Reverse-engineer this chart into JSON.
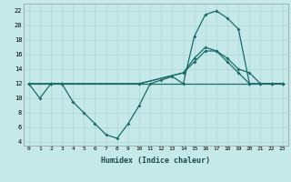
{
  "xlabel": "Humidex (Indice chaleur)",
  "bg_color": "#c5e8e8",
  "line_color": "#1a6b6b",
  "grid_color": "#aed4d4",
  "xlim": [
    -0.5,
    23.5
  ],
  "ylim": [
    3.5,
    23
  ],
  "xticks": [
    0,
    1,
    2,
    3,
    4,
    5,
    6,
    7,
    8,
    9,
    10,
    11,
    12,
    13,
    14,
    15,
    16,
    17,
    18,
    19,
    20,
    21,
    22,
    23
  ],
  "yticks": [
    4,
    6,
    8,
    10,
    12,
    14,
    16,
    18,
    20,
    22
  ],
  "line1_x": [
    0,
    1,
    2,
    3,
    4,
    5,
    6,
    7,
    8,
    9,
    10,
    11,
    12,
    13,
    14,
    15,
    16,
    17,
    18,
    19,
    20,
    21,
    22,
    23
  ],
  "line1_y": [
    12,
    10,
    12,
    12,
    9.5,
    8,
    6.5,
    5,
    4.5,
    6.5,
    9,
    12,
    12.5,
    13,
    12,
    18.5,
    21.5,
    22,
    21,
    19.5,
    12,
    12,
    12,
    12
  ],
  "line2_x": [
    0,
    2,
    3,
    10,
    14,
    15,
    16,
    17,
    18,
    19,
    20,
    21,
    22,
    23
  ],
  "line2_y": [
    12,
    12,
    12,
    12,
    13.5,
    15,
    16.5,
    16.5,
    15.5,
    14,
    13.5,
    12,
    12,
    12
  ],
  "line3_x": [
    0,
    23
  ],
  "line3_y": [
    12,
    12
  ],
  "line4_x": [
    0,
    2,
    3,
    10,
    14,
    15,
    16,
    17,
    18,
    19,
    20,
    21,
    22,
    23
  ],
  "line4_y": [
    12,
    12,
    12,
    12,
    13.5,
    15.5,
    17,
    16.5,
    15,
    13.5,
    12,
    12,
    12,
    12
  ]
}
